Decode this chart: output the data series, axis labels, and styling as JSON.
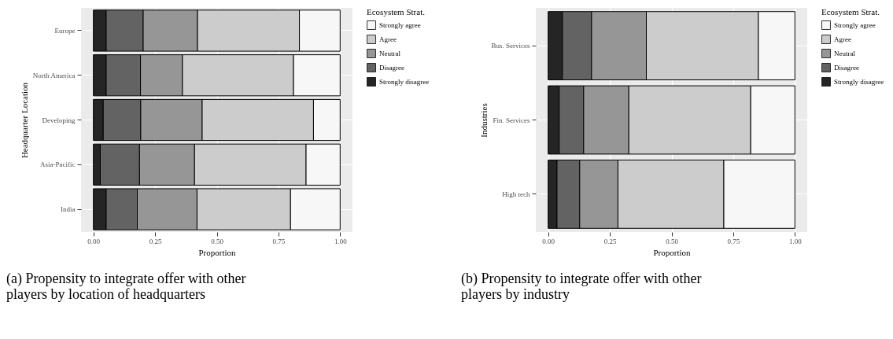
{
  "chart_data": [
    {
      "type": "bar",
      "orientation": "horizontal",
      "stacked": true,
      "title": "(a) Propensity to integrate offer with other players by location of headquarters",
      "xlabel": "Proportion",
      "ylabel": "Headquarter Location",
      "legend_title": "Ecosystem Strat.",
      "legend": "right",
      "grid": true,
      "categories": [
        "Europe",
        "North America",
        "Developing",
        "Asia-Pacific",
        "India"
      ],
      "xlim": [
        -0.05,
        1.05
      ],
      "xticks": [
        {
          "value": 0,
          "label": "0.00"
        },
        {
          "value": 0.25,
          "label": "0.25"
        },
        {
          "value": 0.5,
          "label": "0.50"
        },
        {
          "value": 0.75,
          "label": "0.75"
        },
        {
          "value": 1,
          "label": "1.00"
        }
      ],
      "series": [
        {
          "name": "Strongly disagree",
          "color": "#252525",
          "values": [
            0.052,
            0.052,
            0.04,
            0.028,
            0.052
          ]
        },
        {
          "name": "Disagree",
          "color": "#636363",
          "values": [
            0.15,
            0.139,
            0.152,
            0.159,
            0.126
          ]
        },
        {
          "name": "Neutral",
          "color": "#969696",
          "values": [
            0.22,
            0.17,
            0.249,
            0.223,
            0.242
          ]
        },
        {
          "name": "Agree",
          "color": "#cccccc",
          "values": [
            0.413,
            0.45,
            0.451,
            0.452,
            0.379
          ]
        },
        {
          "name": "Strongly agree",
          "color": "#f7f7f7",
          "values": [
            0.165,
            0.189,
            0.108,
            0.138,
            0.201
          ]
        }
      ]
    },
    {
      "type": "bar",
      "orientation": "horizontal",
      "stacked": true,
      "title": "(b) Propensity to integrate offer with other players by industry",
      "xlabel": "Proportion",
      "ylabel": "Industries",
      "legend_title": "Ecosystem Strat.",
      "legend": "right",
      "grid": true,
      "categories": [
        "Bus. Services",
        "Fin. Services",
        "High tech"
      ],
      "xlim": [
        -0.05,
        1.05
      ],
      "xticks": [
        {
          "value": 0,
          "label": "0.00"
        },
        {
          "value": 0.25,
          "label": "0.25"
        },
        {
          "value": 0.5,
          "label": "0.50"
        },
        {
          "value": 0.75,
          "label": "0.75"
        },
        {
          "value": 1,
          "label": "1.00"
        }
      ],
      "series": [
        {
          "name": "Strongly disagree",
          "color": "#252525",
          "values": [
            0.058,
            0.045,
            0.036
          ]
        },
        {
          "name": "Disagree",
          "color": "#636363",
          "values": [
            0.118,
            0.099,
            0.092
          ]
        },
        {
          "name": "Neutral",
          "color": "#969696",
          "values": [
            0.222,
            0.183,
            0.155
          ]
        },
        {
          "name": "Agree",
          "color": "#cccccc",
          "values": [
            0.454,
            0.494,
            0.429
          ]
        },
        {
          "name": "Strongly agree",
          "color": "#f7f7f7",
          "values": [
            0.148,
            0.179,
            0.288
          ]
        }
      ]
    }
  ]
}
